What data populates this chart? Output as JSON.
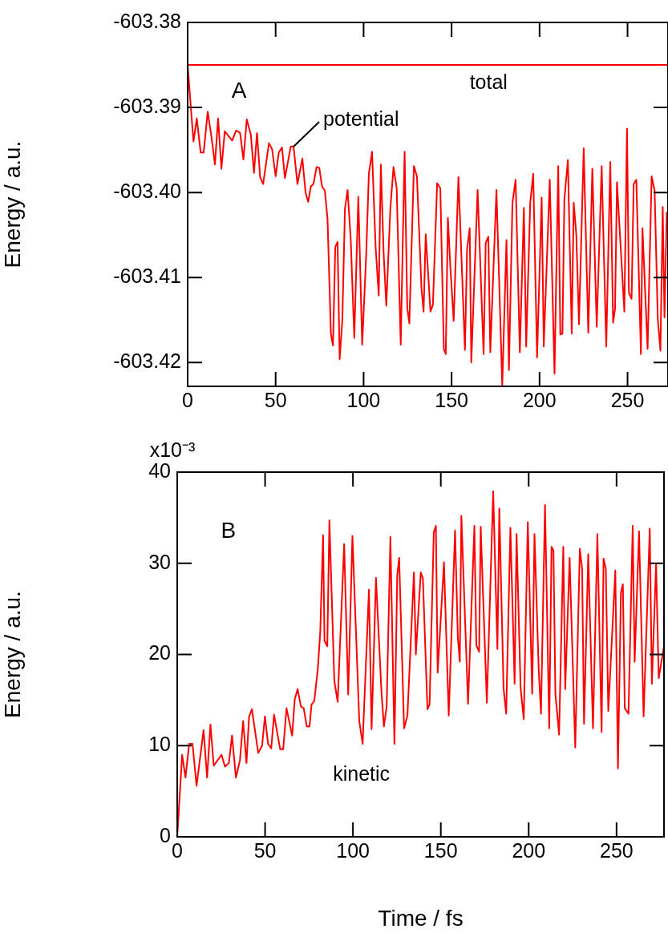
{
  "chart_data": [
    {
      "type": "line",
      "ylabel": "Energy / a.u.",
      "annotations": [
        "A"
      ],
      "xlim": [
        0,
        273
      ],
      "xticks": [
        0,
        50,
        100,
        150,
        200,
        250
      ],
      "ylim": [
        -603.4228,
        -603.38
      ],
      "yticks": [
        -603.38,
        -603.39,
        {
          "value": -603.4,
          "label": "-603.40"
        },
        -603.41,
        -603.42
      ],
      "legend": false,
      "marker": "none",
      "series": [
        {
          "name": "total",
          "color": "#ff0000",
          "x": [
            0,
            273
          ],
          "values": [
            -603.385,
            -603.385
          ]
        },
        {
          "name": "potential",
          "color": "#ff0000",
          "x": [
            0,
            3.3,
            5.2,
            7.4,
            9.1,
            11.4,
            13.5,
            15.5,
            17.3,
            19.2,
            21.1,
            25.3,
            27.6,
            29.8,
            31.7,
            33.6,
            35.9,
            37.7,
            39.4,
            41.2,
            42.9,
            46.2,
            48,
            50,
            51.8,
            53.6,
            55.3,
            58.6,
            60.2,
            62.4,
            65.2,
            67,
            68.5,
            70,
            71.5,
            73.3,
            74.8,
            76.4,
            78,
            79.5,
            81.4,
            82.6,
            83.9,
            85.2,
            86.4,
            87.9,
            89.4,
            90.9,
            92.7,
            94.7,
            97,
            99.2,
            101.4,
            103,
            104.8,
            106.8,
            108.6,
            109.8,
            111.4,
            112.9,
            115.2,
            117,
            118.8,
            121.1,
            123.3,
            124.8,
            126,
            128.6,
            130.3,
            132.9,
            134.1,
            135.3,
            138,
            139.4,
            141.8,
            143.6,
            145.6,
            146.7,
            147.9,
            149.4,
            151.2,
            153.9,
            157.6,
            158.8,
            160.3,
            161.2,
            164.8,
            168.2,
            169.4,
            170.9,
            172,
            175.5,
            178.8,
            181.2,
            182.6,
            184.6,
            186.4,
            188.8,
            191.1,
            192.4,
            194.7,
            196.4,
            198.6,
            201.2,
            202.4,
            205.8,
            208.5,
            210.6,
            211.8,
            213,
            214.1,
            216.1,
            218.3,
            219.4,
            220.9,
            222.4,
            225.1,
            227.7,
            230,
            232.5,
            235.3,
            237.9,
            240.2,
            241.8,
            242.9,
            244,
            248.2,
            249.7,
            250.8,
            252.3,
            253.5,
            255,
            257.6,
            258.5,
            261.4,
            263.7,
            265.4,
            267.2,
            268.7,
            270,
            271,
            272.3
          ],
          "values": [
            -603.385,
            -603.394,
            -603.3913,
            -603.3953,
            -603.3953,
            -603.3905,
            -603.3934,
            -603.3967,
            -603.3913,
            -603.3972,
            -603.3928,
            -603.3939,
            -603.3927,
            -603.393,
            -603.3961,
            -603.3914,
            -603.3932,
            -603.3977,
            -603.393,
            -603.3982,
            -603.399,
            -603.3942,
            -603.3949,
            -603.3981,
            -603.3953,
            -603.3947,
            -603.3983,
            -603.3946,
            -603.3946,
            -603.399,
            -603.396,
            -603.4,
            -603.4011,
            -603.3993,
            -603.399,
            -603.397,
            -603.3971,
            -603.3993,
            -603.3998,
            -603.4031,
            -603.4166,
            -603.418,
            -603.4064,
            -603.4058,
            -603.4196,
            -603.4151,
            -603.4019,
            -603.3997,
            -603.4056,
            -603.4171,
            -603.4005,
            -603.4179,
            -603.4077,
            -603.3978,
            -603.3952,
            -603.4063,
            -603.4121,
            -603.3967,
            -603.4072,
            -603.4133,
            -603.4019,
            -603.397,
            -603.3995,
            -603.4179,
            -603.3952,
            -603.4135,
            -603.4154,
            -603.3969,
            -603.3981,
            -603.4113,
            -603.414,
            -603.4049,
            -603.414,
            -603.4132,
            -603.3989,
            -603.3995,
            -603.4184,
            -603.419,
            -603.403,
            -603.4091,
            -603.4151,
            -603.3982,
            -603.4185,
            -603.4067,
            -603.4042,
            -603.42,
            -603.3997,
            -603.419,
            -603.4059,
            -603.4052,
            -603.4188,
            -603.3997,
            -603.4227,
            -603.4056,
            -603.4209,
            -603.4012,
            -603.3985,
            -603.4188,
            -603.4018,
            -603.4181,
            -603.4012,
            -603.3978,
            -603.4194,
            -603.4006,
            -603.4181,
            -603.3985,
            -603.4213,
            -603.3969,
            -603.4167,
            -603.4166,
            -603.4008,
            -603.3962,
            -603.4166,
            -603.4012,
            -603.405,
            -603.4155,
            -603.3948,
            -603.4165,
            -603.3972,
            -603.4158,
            -603.3969,
            -603.4181,
            -603.3964,
            -603.4153,
            -603.4137,
            -603.3988,
            -603.414,
            -603.3925,
            -603.4118,
            -603.4125,
            -603.399,
            -603.3985,
            -603.419,
            -603.4042,
            -603.4184,
            -603.3981,
            -603.3998,
            -603.4149,
            -603.4186,
            -603.4017,
            -603.4147,
            -603.4023
          ]
        }
      ]
    },
    {
      "type": "line",
      "xlabel": "Time / fs",
      "ylabel": "Energy / a.u.",
      "annotations": [
        "B",
        "x10⁻³"
      ],
      "xlim": [
        0,
        277
      ],
      "xticks": [
        0,
        50,
        100,
        150,
        200,
        250
      ],
      "ylim": [
        0,
        40
      ],
      "yticks": [
        0,
        10,
        20,
        30,
        40
      ],
      "legend": false,
      "marker": "none",
      "series": [
        {
          "name": "kinetic",
          "color": "#ff0000",
          "x": [
            0,
            2.8,
            4.7,
            6.8,
            8.7,
            11,
            15,
            17,
            18.9,
            20.8,
            25.2,
            27.2,
            29.4,
            31.2,
            33.4,
            35.7,
            37.5,
            39.4,
            40.9,
            42.5,
            46.1,
            48.3,
            49.9,
            51.7,
            53.5,
            55.1,
            58.6,
            60.3,
            62.2,
            65.4,
            66.9,
            68.5,
            70.4,
            72,
            73.7,
            75.3,
            76.4,
            78,
            80,
            81.4,
            83,
            83.8,
            85.4,
            86.6,
            89.4,
            91.3,
            95,
            97.3,
            99.7,
            103.6,
            105.5,
            109.1,
            110.6,
            113.1,
            116.2,
            117.6,
            119.2,
            121.3,
            123.6,
            125.2,
            126.3,
            129.1,
            131,
            134.7,
            135.8,
            138.6,
            139.8,
            142.4,
            143.6,
            146,
            147.2,
            148.2,
            151.8,
            154.5,
            158.1,
            159.7,
            160.8,
            161.7,
            165.5,
            169.1,
            170.2,
            171.8,
            172.7,
            176.2,
            179.8,
            182.2,
            183.3,
            185.7,
            187.2,
            189.6,
            192,
            193.1,
            195.4,
            197.2,
            199.5,
            202,
            203.3,
            205.7,
            207,
            209.3,
            211.7,
            213,
            214.1,
            215.2,
            217.3,
            219.7,
            220.8,
            223.3,
            226.5,
            229.1,
            230.4,
            231.5,
            233.9,
            236.6,
            239.1,
            241.5,
            242.6,
            243.9,
            245.3,
            249.3,
            250.8,
            252.5,
            253.6,
            254.7,
            256.8,
            259.2,
            260.3,
            262.8,
            265.4,
            268.9,
            270.1,
            272.5,
            274,
            277
          ],
          "values": [
            0,
            9,
            6.5,
            10.2,
            10.2,
            5.6,
            11.7,
            6.5,
            12.3,
            7.8,
            9,
            7.7,
            8.1,
            11.1,
            6.5,
            8.4,
            12.7,
            8.1,
            13.2,
            14,
            9.2,
            10,
            13.2,
            10.2,
            9.7,
            13.4,
            9.6,
            9.6,
            14.1,
            11.1,
            15.1,
            16.2,
            14.3,
            14.1,
            12.1,
            12.1,
            14.5,
            14.9,
            18.4,
            22.5,
            33.1,
            21.5,
            20.9,
            34.7,
            17.1,
            14.8,
            32.1,
            15.6,
            33,
            12.7,
            10.2,
            27.1,
            11.8,
            28.4,
            16,
            12.1,
            14.3,
            32.9,
            10.2,
            28.7,
            30.6,
            11.9,
            13.3,
            29,
            20,
            29,
            28.3,
            14,
            14.5,
            33.4,
            34.1,
            18,
            30.1,
            13.3,
            33.6,
            21.8,
            19.2,
            35.2,
            14.6,
            34.1,
            21,
            20.3,
            34,
            14.7,
            37.9,
            20.6,
            36,
            16.3,
            13.5,
            33.9,
            16.8,
            33.2,
            16.3,
            12.9,
            34.5,
            15.7,
            33.2,
            18.4,
            13.5,
            36.4,
            11.9,
            31.8,
            31.4,
            15.7,
            11.2,
            31.8,
            16.2,
            30.6,
            9.8,
            31.6,
            29.4,
            12.4,
            31,
            11.9,
            33.2,
            11.5,
            30.5,
            29.4,
            13.8,
            29.2,
            7.5,
            26.8,
            27.7,
            14.1,
            13.5,
            34.1,
            19.2,
            33.5,
            13.2,
            33.8,
            16.8,
            29.9,
            17.4,
            20.9
          ]
        }
      ]
    }
  ]
}
